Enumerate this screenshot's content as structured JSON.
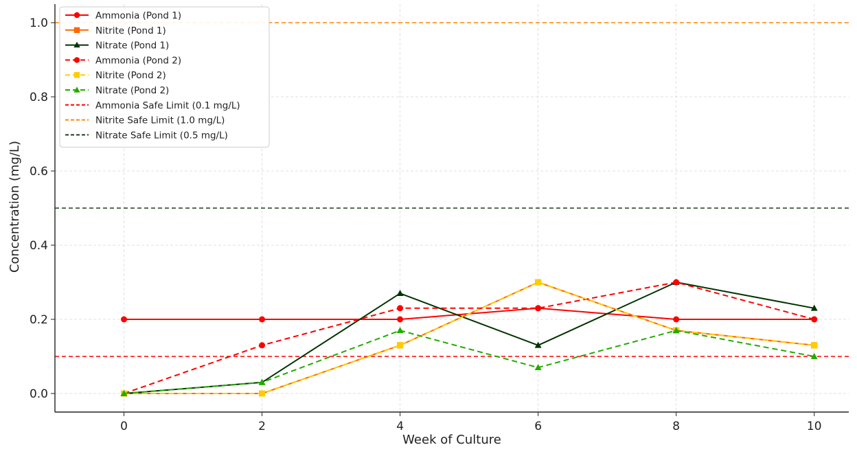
{
  "chart_data": {
    "type": "line",
    "xlabel": "Week of Culture",
    "ylabel": "Concentration (mg/L)",
    "x": [
      0,
      2,
      4,
      6,
      8,
      10
    ],
    "xlim": [
      -1,
      10.5
    ],
    "ylim": [
      -0.05,
      1.05
    ],
    "xticks": [
      "0",
      "2",
      "4",
      "6",
      "8",
      "10"
    ],
    "yticks": [
      "0.0",
      "0.2",
      "0.4",
      "0.6",
      "0.8",
      "1.0"
    ],
    "grid": true,
    "legend_position": "top-left",
    "series": [
      {
        "name": "Ammonia (Pond 1)",
        "values": [
          0.2,
          0.2,
          0.2,
          0.23,
          0.2,
          0.2
        ],
        "color": "#ff0000",
        "line_style": "solid",
        "marker": "circle"
      },
      {
        "name": "Nitrite (Pond 1)",
        "values": [
          0.0,
          0.0,
          0.13,
          0.3,
          0.17,
          0.13
        ],
        "color": "#ff6600",
        "line_style": "solid",
        "marker": "square"
      },
      {
        "name": "Nitrate (Pond 1)",
        "values": [
          0.0,
          0.03,
          0.27,
          0.13,
          0.3,
          0.23
        ],
        "color": "#003300",
        "line_style": "solid",
        "marker": "triangle"
      },
      {
        "name": "Ammonia (Pond 2)",
        "values": [
          0.0,
          0.13,
          0.23,
          0.23,
          0.3,
          0.2
        ],
        "color": "#ff0000",
        "line_style": "dashed",
        "marker": "circle"
      },
      {
        "name": "Nitrite (Pond 2)",
        "values": [
          0.0,
          0.0,
          0.13,
          0.3,
          0.17,
          0.13
        ],
        "color": "#ffcc00",
        "line_style": "dashed",
        "marker": "square"
      },
      {
        "name": "Nitrate (Pond 2)",
        "values": [
          0.0,
          0.03,
          0.17,
          0.07,
          0.17,
          0.1
        ],
        "color": "#22aa00",
        "line_style": "dashed",
        "marker": "triangle"
      }
    ],
    "reference_lines": [
      {
        "name": "Ammonia Safe Limit (0.1 mg/L)",
        "y": 0.1,
        "color": "#ff0000"
      },
      {
        "name": "Nitrite Safe Limit (1.0 mg/L)",
        "y": 1.0,
        "color": "#ff8800"
      },
      {
        "name": "Nitrate Safe Limit (0.5 mg/L)",
        "y": 0.5,
        "color": "#1a3d1a"
      }
    ]
  }
}
